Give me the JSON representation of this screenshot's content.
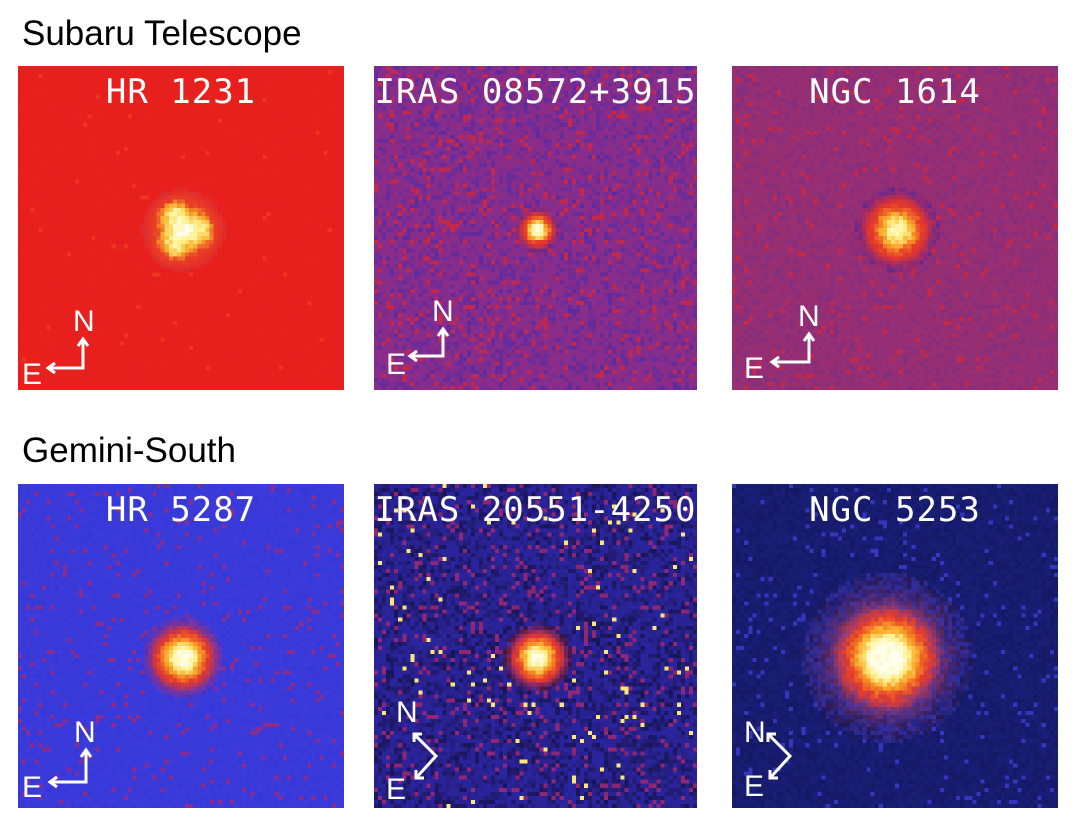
{
  "sections": {
    "subaru": "Subaru Telescope",
    "gemini": "Gemini-South"
  },
  "panels": [
    {
      "label": "HR 1231",
      "palette": "red",
      "bg": "#e8201d",
      "noise": 0.04,
      "star_size": 1.0,
      "star_peak": 1.0,
      "compass": "NE"
    },
    {
      "label": "IRAS 08572+3915",
      "palette": "purple",
      "bg": "#8a2e8a",
      "noise": 0.5,
      "star_size": 0.55,
      "star_peak": 1.0,
      "compass": "NE"
    },
    {
      "label": "NGC 1614",
      "palette": "purple",
      "bg": "#9a2f70",
      "noise": 0.22,
      "star_size": 1.05,
      "star_peak": 0.88,
      "compass": "NE"
    },
    {
      "label": "HR 5287",
      "palette": "blue",
      "bg": "#3a3ad8",
      "noise": 0.28,
      "star_size": 1.0,
      "star_peak": 1.0,
      "compass": "NE"
    },
    {
      "label": "IRAS 20551-4250",
      "palette": "darkblue",
      "bg": "#2a2290",
      "noise": 0.55,
      "star_size": 0.85,
      "star_peak": 1.0,
      "compass": "rotated"
    },
    {
      "label": "NGC 5253",
      "palette": "navy",
      "bg": "#181c70",
      "noise": 0.22,
      "star_size": 1.35,
      "star_peak": 1.0,
      "compass": "rotated"
    }
  ],
  "compass_labels": {
    "north": "N",
    "east": "E"
  }
}
